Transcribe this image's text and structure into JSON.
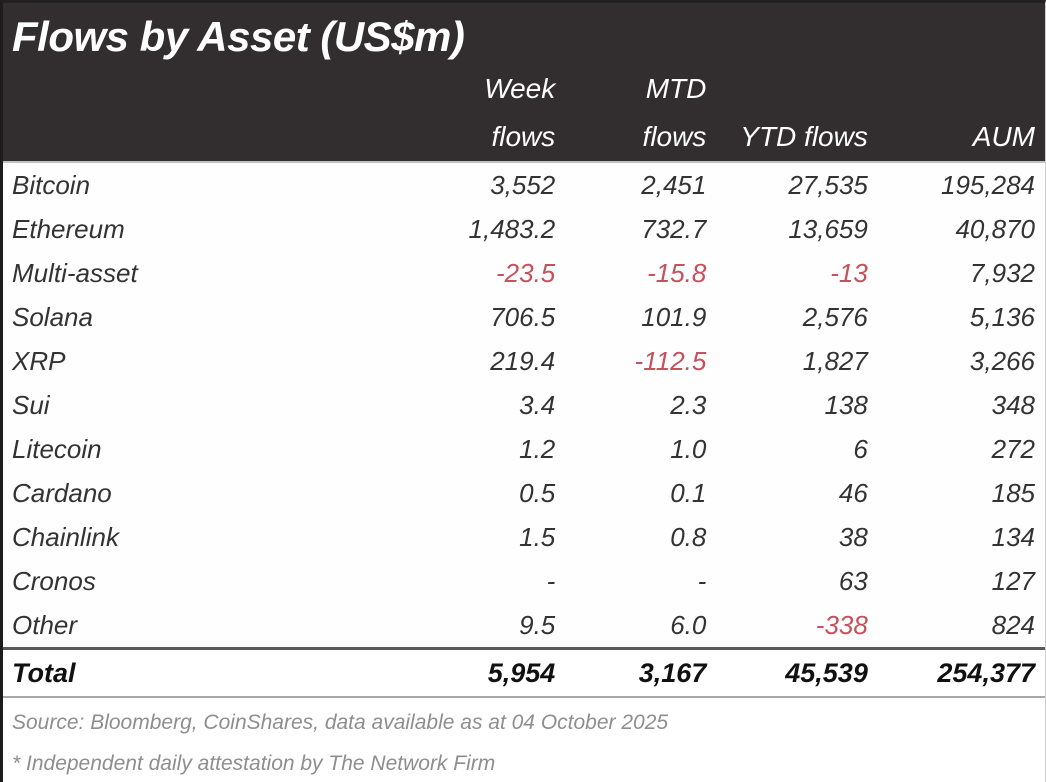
{
  "chart_data": {
    "type": "table",
    "title": "Flows by Asset (US$m)",
    "columns": {
      "asset": "",
      "week": {
        "line1": "Week",
        "line2": "flows"
      },
      "mtd": {
        "line1": "MTD",
        "line2": "flows"
      },
      "ytd": {
        "line1": "",
        "line2": "YTD flows"
      },
      "aum": {
        "line1": "",
        "line2": "AUM"
      }
    },
    "rows": [
      {
        "asset": "Bitcoin",
        "week": "3,552",
        "mtd": "2,451",
        "ytd": "27,535",
        "aum": "195,284"
      },
      {
        "asset": "Ethereum",
        "week": "1,483.2",
        "mtd": "732.7",
        "ytd": "13,659",
        "aum": "40,870"
      },
      {
        "asset": "Multi-asset",
        "week": "-23.5",
        "mtd": "-15.8",
        "ytd": "-13",
        "aum": "7,932"
      },
      {
        "asset": "Solana",
        "week": "706.5",
        "mtd": "101.9",
        "ytd": "2,576",
        "aum": "5,136"
      },
      {
        "asset": "XRP",
        "week": "219.4",
        "mtd": "-112.5",
        "ytd": "1,827",
        "aum": "3,266"
      },
      {
        "asset": "Sui",
        "week": "3.4",
        "mtd": "2.3",
        "ytd": "138",
        "aum": "348"
      },
      {
        "asset": "Litecoin",
        "week": "1.2",
        "mtd": "1.0",
        "ytd": "6",
        "aum": "272"
      },
      {
        "asset": "Cardano",
        "week": "0.5",
        "mtd": "0.1",
        "ytd": "46",
        "aum": "185"
      },
      {
        "asset": "Chainlink",
        "week": "1.5",
        "mtd": "0.8",
        "ytd": "38",
        "aum": "134"
      },
      {
        "asset": "Cronos",
        "week": "-",
        "mtd": "-",
        "ytd": "63",
        "aum": "127"
      },
      {
        "asset": "Other",
        "week": "9.5",
        "mtd": "6.0",
        "ytd": "-338",
        "aum": "824"
      }
    ],
    "total": {
      "label": "Total",
      "week": "5,954",
      "mtd": "3,167",
      "ytd": "45,539",
      "aum": "254,377"
    }
  },
  "footer": {
    "source": "Source: Bloomberg, CoinShares, data available as at 04 October 2025",
    "attestation": "* Independent daily attestation by The Network Firm"
  },
  "colors": {
    "header_bg": "#322e2f",
    "header_text": "#ffffff",
    "body_text": "#333333",
    "total_text": "#111111",
    "negative": "#c4515c",
    "footer_text": "#8e8e8e"
  }
}
